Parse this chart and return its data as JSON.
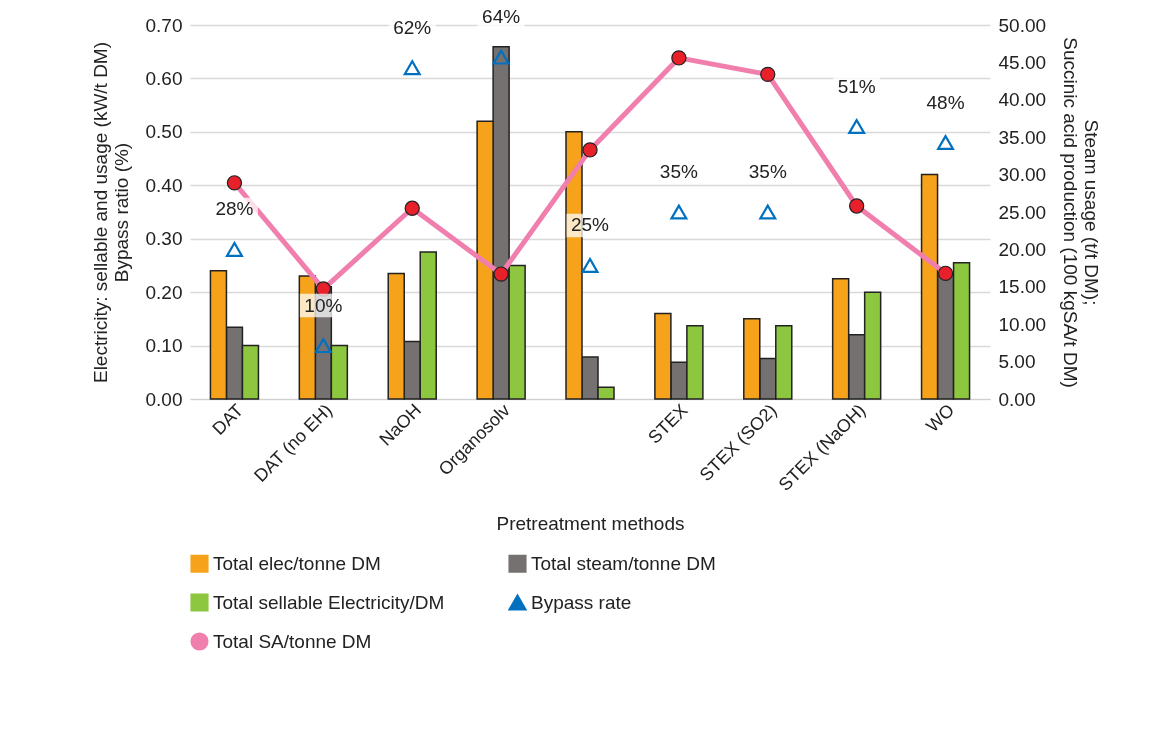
{
  "chart_data": {
    "type": "bar",
    "categories": [
      "DAT",
      "DAT (no EH)",
      "NaOH",
      "Organosolv",
      null,
      "STEX",
      "STEX (SO2)",
      "STEX (NaOH)",
      "WO"
    ],
    "xlabel": "Pretreatment methods",
    "ylabel": "Electricity: sellable and usage (kW/t DM)\nBypass ratio (%)",
    "y2label": "Steam usage (t/t DM);\nSuccinic acid production (100 kgSA/t DM)",
    "ylim": [
      0,
      0.7
    ],
    "yticks": [
      {
        "value": 0,
        "label": "0.00"
      },
      {
        "value": 0.1,
        "label": "0.10"
      },
      {
        "value": 0.2,
        "label": "0.20"
      },
      {
        "value": 0.3,
        "label": "0.30"
      },
      {
        "value": 0.4,
        "label": "0.40"
      },
      {
        "value": 0.5,
        "label": "0.50"
      },
      {
        "value": 0.6,
        "label": "0.60"
      },
      {
        "value": 0.7,
        "label": "0.70"
      }
    ],
    "y2lim": [
      0,
      50
    ],
    "y2ticks": [
      {
        "value": 0,
        "label": "0.00"
      },
      {
        "value": 5,
        "label": "5.00"
      },
      {
        "value": 10,
        "label": "10.00"
      },
      {
        "value": 15,
        "label": "15.00"
      },
      {
        "value": 20,
        "label": "20.00"
      },
      {
        "value": 25,
        "label": "25.00"
      },
      {
        "value": 30,
        "label": "30.00"
      },
      {
        "value": 35,
        "label": "35.00"
      },
      {
        "value": 40,
        "label": "40.00"
      },
      {
        "value": 45,
        "label": "45.00"
      },
      {
        "value": 50,
        "label": "50.00"
      }
    ],
    "grid": "y",
    "legend": "bottom",
    "series": [
      {
        "name": "Total elec/tonne DM",
        "color": "#f7a21b",
        "values": [
          0.24,
          0.23,
          0.235,
          0.52,
          0.5,
          0.16,
          0.15,
          0.225,
          0.42
        ]
      },
      {
        "name": "Total steam/tonne DM",
        "axis": "y2",
        "color": "#767171",
        "values": [
          9.6,
          15,
          7.7,
          47.1,
          5.6,
          4.9,
          5.4,
          8.6,
          16.5
        ]
      },
      {
        "name": "Total sellable Electricity/DM",
        "color": "#8dc63f",
        "values": [
          0.1,
          0.1,
          0.275,
          0.25,
          0.022,
          0.137,
          0.137,
          0.2,
          0.255
        ]
      },
      {
        "name": "Bypass rate",
        "type": "scatter",
        "marker": "triangle",
        "color": "#0070c0",
        "values": [
          0.28,
          0.1,
          0.62,
          0.64,
          0.25,
          0.35,
          0.35,
          0.51,
          0.48
        ],
        "value_labels": [
          "28%",
          "10%",
          "62%",
          "64%",
          "25%",
          "35%",
          "35%",
          "51%",
          "48%"
        ]
      },
      {
        "name": "Total SA/tonne DM",
        "type": "line",
        "axis": "y2",
        "marker": "circle",
        "color": "#f07fae",
        "values": [
          28.9,
          14.7,
          25.5,
          16.7,
          33.3,
          45.6,
          43.4,
          25.8,
          16.8
        ]
      }
    ]
  }
}
